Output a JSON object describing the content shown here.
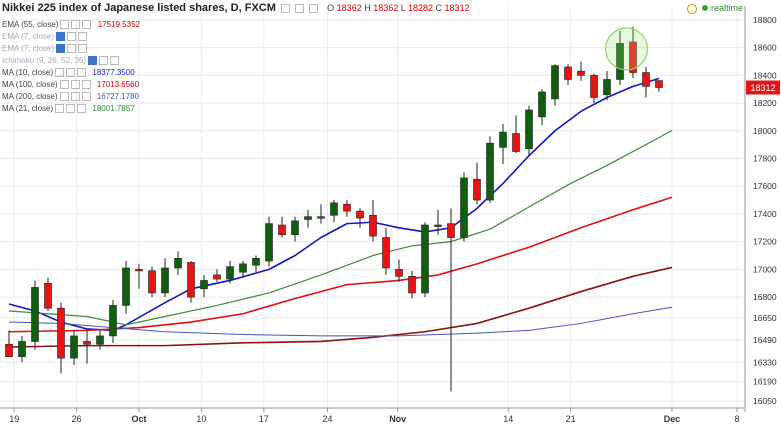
{
  "header": {
    "title": "Nikkei 225 index of Japanese listed shares, D, FXCM",
    "open_label": "O",
    "open": "18362",
    "high_label": "H",
    "high": "18362",
    "low_label": "L",
    "low": "18282",
    "close_label": "C",
    "close": "18312",
    "realtime": "realtime"
  },
  "indicators": [
    {
      "label": "EMA (55, close)",
      "value": "17519.5352",
      "color": "#cc0000",
      "dim": false
    },
    {
      "label": "EMA (7, close)",
      "value": "",
      "color": "#999999",
      "dim": true
    },
    {
      "label": "EMA (7, close)",
      "value": "",
      "color": "#999999",
      "dim": true
    },
    {
      "label": "Ichimoku (9, 26, 52, 26)",
      "value": "",
      "color": "#999999",
      "dim": true
    },
    {
      "label": "MA (10, close)",
      "value": "18377.3500",
      "color": "#1a1acc",
      "dim": false
    },
    {
      "label": "MA (100, close)",
      "value": "17013.6560",
      "color": "#cc0000",
      "dim": false
    },
    {
      "label": "MA (200, close)",
      "value": "16727.1780",
      "color": "#4455bb",
      "dim": false
    },
    {
      "label": "MA (21, close)",
      "value": "18001.7857",
      "color": "#2e8b2e",
      "dim": false
    }
  ],
  "chart_data": {
    "type": "candlestick",
    "ylim": [
      16000,
      18900
    ],
    "y_ticks": [
      18800,
      18600,
      18400,
      18200,
      18000,
      17800,
      17600,
      17400,
      17200,
      17000,
      16800,
      16650,
      16490,
      16330,
      16190,
      16050
    ],
    "x_ticks": [
      "19",
      "26",
      "Oct",
      "10",
      "17",
      "24",
      "Nov",
      "14",
      "21",
      "Dec",
      "8"
    ],
    "last_price": "18312",
    "candles": [
      {
        "o": 16460,
        "h": 16560,
        "l": 16380,
        "c": 16370
      },
      {
        "o": 16370,
        "h": 16520,
        "l": 16330,
        "c": 16480
      },
      {
        "o": 16480,
        "h": 16920,
        "l": 16420,
        "c": 16870
      },
      {
        "o": 16900,
        "h": 16940,
        "l": 16700,
        "c": 16720
      },
      {
        "o": 16720,
        "h": 16760,
        "l": 16250,
        "c": 16360
      },
      {
        "o": 16360,
        "h": 16560,
        "l": 16310,
        "c": 16520
      },
      {
        "o": 16480,
        "h": 16560,
        "l": 16320,
        "c": 16460
      },
      {
        "o": 16460,
        "h": 16560,
        "l": 16420,
        "c": 16520
      },
      {
        "o": 16520,
        "h": 16780,
        "l": 16470,
        "c": 16740
      },
      {
        "o": 16740,
        "h": 17060,
        "l": 16680,
        "c": 17010
      },
      {
        "o": 17000,
        "h": 17040,
        "l": 16860,
        "c": 16990
      },
      {
        "o": 16990,
        "h": 17020,
        "l": 16800,
        "c": 16830
      },
      {
        "o": 16830,
        "h": 17080,
        "l": 16800,
        "c": 17010
      },
      {
        "o": 17010,
        "h": 17130,
        "l": 16960,
        "c": 17080
      },
      {
        "o": 17050,
        "h": 17060,
        "l": 16760,
        "c": 16800
      },
      {
        "o": 16860,
        "h": 16960,
        "l": 16800,
        "c": 16920
      },
      {
        "o": 16960,
        "h": 17000,
        "l": 16910,
        "c": 16930
      },
      {
        "o": 16930,
        "h": 17060,
        "l": 16900,
        "c": 17020
      },
      {
        "o": 16980,
        "h": 17060,
        "l": 16940,
        "c": 17040
      },
      {
        "o": 17030,
        "h": 17100,
        "l": 16980,
        "c": 17080
      },
      {
        "o": 17060,
        "h": 17380,
        "l": 17020,
        "c": 17330
      },
      {
        "o": 17320,
        "h": 17380,
        "l": 17230,
        "c": 17250
      },
      {
        "o": 17250,
        "h": 17380,
        "l": 17200,
        "c": 17350
      },
      {
        "o": 17360,
        "h": 17430,
        "l": 17300,
        "c": 17380
      },
      {
        "o": 17370,
        "h": 17470,
        "l": 17330,
        "c": 17380
      },
      {
        "o": 17390,
        "h": 17500,
        "l": 17340,
        "c": 17480
      },
      {
        "o": 17470,
        "h": 17500,
        "l": 17380,
        "c": 17420
      },
      {
        "o": 17420,
        "h": 17440,
        "l": 17300,
        "c": 17370
      },
      {
        "o": 17390,
        "h": 17500,
        "l": 17200,
        "c": 17240
      },
      {
        "o": 17230,
        "h": 17300,
        "l": 16960,
        "c": 17010
      },
      {
        "o": 17000,
        "h": 17070,
        "l": 16910,
        "c": 16950
      },
      {
        "o": 16950,
        "h": 16990,
        "l": 16790,
        "c": 16830
      },
      {
        "o": 16830,
        "h": 17340,
        "l": 16800,
        "c": 17320
      },
      {
        "o": 17320,
        "h": 17430,
        "l": 17250,
        "c": 17320
      },
      {
        "o": 17330,
        "h": 17440,
        "l": 16120,
        "c": 17230
      },
      {
        "o": 17230,
        "h": 17700,
        "l": 17200,
        "c": 17660
      },
      {
        "o": 17650,
        "h": 17770,
        "l": 17470,
        "c": 17500
      },
      {
        "o": 17500,
        "h": 17960,
        "l": 17480,
        "c": 17910
      },
      {
        "o": 17880,
        "h": 18050,
        "l": 17760,
        "c": 17990
      },
      {
        "o": 17980,
        "h": 18110,
        "l": 17840,
        "c": 17850
      },
      {
        "o": 17870,
        "h": 18180,
        "l": 17820,
        "c": 18150
      },
      {
        "o": 18100,
        "h": 18300,
        "l": 18040,
        "c": 18280
      },
      {
        "o": 18230,
        "h": 18480,
        "l": 18180,
        "c": 18470
      },
      {
        "o": 18460,
        "h": 18480,
        "l": 18330,
        "c": 18370
      },
      {
        "o": 18430,
        "h": 18500,
        "l": 18360,
        "c": 18400
      },
      {
        "o": 18400,
        "h": 18410,
        "l": 18200,
        "c": 18240
      },
      {
        "o": 18260,
        "h": 18430,
        "l": 18220,
        "c": 18370
      },
      {
        "o": 18370,
        "h": 18720,
        "l": 18330,
        "c": 18630
      },
      {
        "o": 18640,
        "h": 18750,
        "l": 18380,
        "c": 18420
      },
      {
        "o": 18420,
        "h": 18460,
        "l": 18240,
        "c": 18320
      },
      {
        "o": 18362,
        "h": 18362,
        "l": 18282,
        "c": 18312
      }
    ],
    "lines": [
      {
        "name": "MA (10, close)",
        "color": "#1515c8",
        "width": 1.6,
        "points": [
          [
            0,
            16750
          ],
          [
            2,
            16700
          ],
          [
            4,
            16620
          ],
          [
            6,
            16570
          ],
          [
            8,
            16560
          ],
          [
            9,
            16600
          ],
          [
            12,
            16760
          ],
          [
            14,
            16860
          ],
          [
            17,
            16920
          ],
          [
            20,
            17000
          ],
          [
            22,
            17100
          ],
          [
            24,
            17230
          ],
          [
            26,
            17330
          ],
          [
            28,
            17340
          ],
          [
            30,
            17300
          ],
          [
            32,
            17270
          ],
          [
            34,
            17300
          ],
          [
            36,
            17440
          ],
          [
            38,
            17620
          ],
          [
            40,
            17820
          ],
          [
            42,
            18000
          ],
          [
            44,
            18140
          ],
          [
            46,
            18240
          ],
          [
            48,
            18320
          ],
          [
            50,
            18377
          ]
        ]
      },
      {
        "name": "MA (21, close)",
        "color": "#3c8c3c",
        "width": 1.2,
        "points": [
          [
            0,
            16700
          ],
          [
            3,
            16680
          ],
          [
            6,
            16660
          ],
          [
            9,
            16600
          ],
          [
            12,
            16660
          ],
          [
            16,
            16740
          ],
          [
            20,
            16830
          ],
          [
            24,
            16960
          ],
          [
            28,
            17100
          ],
          [
            31,
            17170
          ],
          [
            34,
            17200
          ],
          [
            37,
            17290
          ],
          [
            40,
            17450
          ],
          [
            43,
            17610
          ],
          [
            46,
            17750
          ],
          [
            49,
            17900
          ],
          [
            51,
            18002
          ]
        ]
      },
      {
        "name": "EMA (55, close)",
        "color": "#e01010",
        "width": 1.6,
        "points": [
          [
            0,
            16550
          ],
          [
            6,
            16560
          ],
          [
            10,
            16580
          ],
          [
            14,
            16620
          ],
          [
            18,
            16680
          ],
          [
            22,
            16790
          ],
          [
            26,
            16890
          ],
          [
            30,
            16920
          ],
          [
            33,
            16960
          ],
          [
            36,
            17040
          ],
          [
            40,
            17160
          ],
          [
            44,
            17300
          ],
          [
            48,
            17430
          ],
          [
            51,
            17520
          ]
        ]
      },
      {
        "name": "MA (100, close)",
        "color": "#8b1010",
        "width": 1.6,
        "points": [
          [
            0,
            16440
          ],
          [
            6,
            16450
          ],
          [
            12,
            16450
          ],
          [
            18,
            16470
          ],
          [
            24,
            16480
          ],
          [
            28,
            16510
          ],
          [
            32,
            16550
          ],
          [
            36,
            16610
          ],
          [
            40,
            16720
          ],
          [
            44,
            16840
          ],
          [
            48,
            16950
          ],
          [
            51,
            17014
          ]
        ]
      },
      {
        "name": "MA (200, close)",
        "color": "#4455bb",
        "width": 1.0,
        "points": [
          [
            0,
            16620
          ],
          [
            4,
            16610
          ],
          [
            8,
            16580
          ],
          [
            12,
            16550
          ],
          [
            18,
            16530
          ],
          [
            24,
            16520
          ],
          [
            30,
            16520
          ],
          [
            36,
            16540
          ],
          [
            40,
            16560
          ],
          [
            44,
            16610
          ],
          [
            48,
            16680
          ],
          [
            51,
            16727
          ]
        ]
      }
    ]
  }
}
